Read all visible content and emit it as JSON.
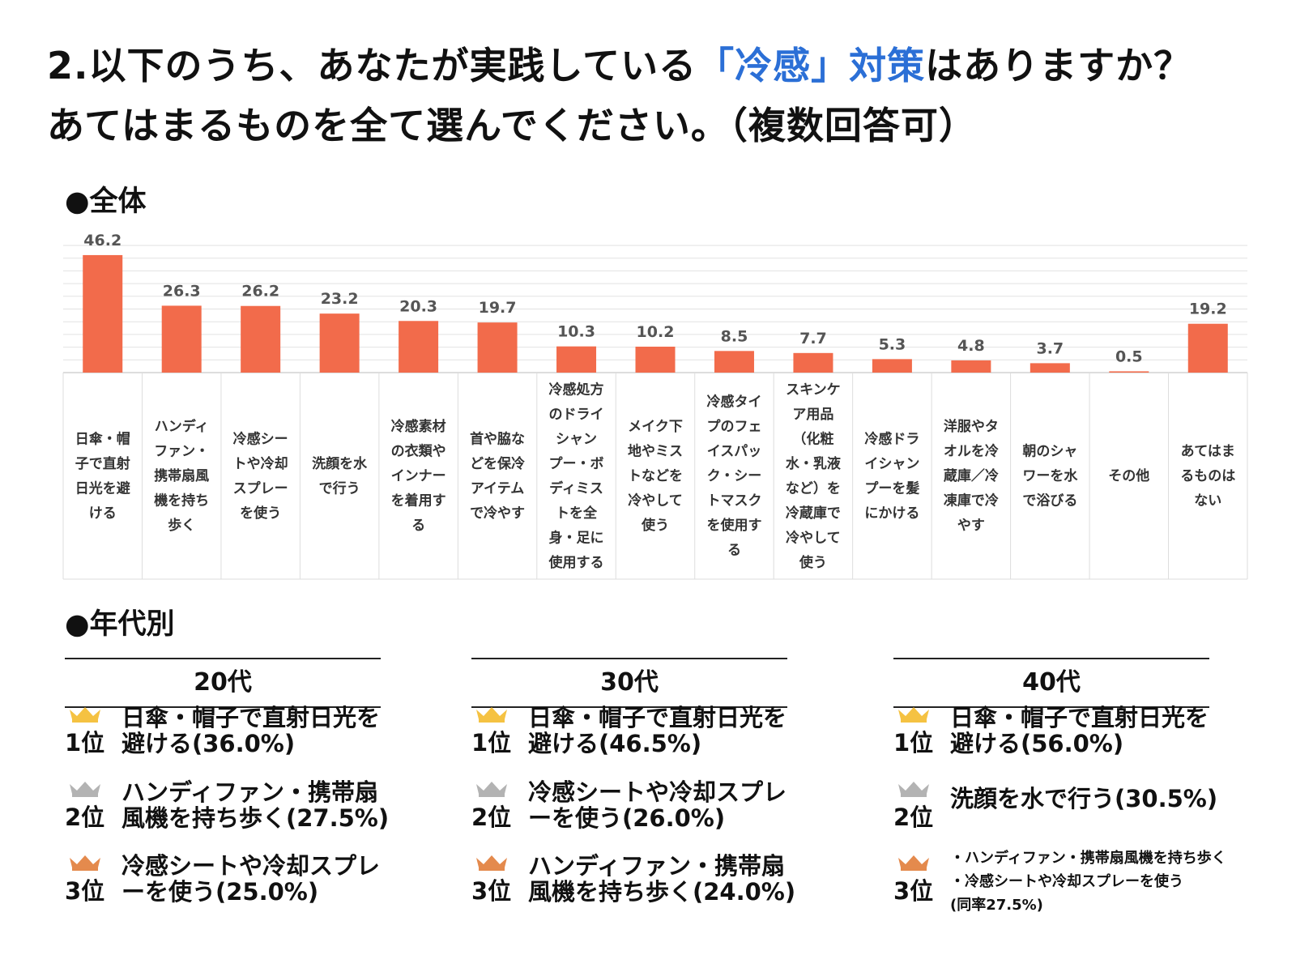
{
  "title": {
    "line1_pre": "2.以下のうち、あなたが実践している",
    "line1_highlight": "「冷感」対策",
    "line1_post": "はありますか？",
    "line2": "あてはまるものを全て選んでください。（複数回答可）"
  },
  "section_all": "●全体",
  "section_age": "●年代別",
  "colors": {
    "bar": "#f26b4b",
    "highlight": "#2b6fd6",
    "gold": "#f5c242",
    "silver": "#b3b3b3",
    "bronze": "#e48a4d"
  },
  "chart_data": {
    "type": "bar",
    "title": "全体",
    "ylim": [
      0,
      50
    ],
    "grid": true,
    "categories": [
      "日傘・帽子で直射日光を避ける",
      "ハンディファン・携帯扇風機を持ち歩く",
      "冷感シートや冷却スプレーを使う",
      "洗顔を水で行う",
      "冷感素材の衣類やインナーを着用する",
      "首や脇などを保冷アイテムで冷やす",
      "冷感処方のドライシャンプー・ボディミストを全身・足に使用する",
      "メイク下地やミストなどを冷やして使う",
      "冷感タイプのフェイスパック・シートマスクを使用する",
      "スキンケア用品（化粧水・乳液など）を冷蔵庫で冷やして使う",
      "冷感ドライシャンプーを髪にかける",
      "洋服やタオルを冷蔵庫／冷凍庫で冷やす",
      "朝のシャワーを水で浴びる",
      "その他",
      "あてはまるものはない"
    ],
    "category_lines": [
      [
        "日傘・帽",
        "子で直射",
        "日光を避",
        "ける"
      ],
      [
        "ハンディ",
        "ファン・",
        "携帯扇風",
        "機を持ち",
        "歩く"
      ],
      [
        "冷感シー",
        "トや冷却",
        "スプレー",
        "を使う"
      ],
      [
        "洗顔を水",
        "で行う"
      ],
      [
        "冷感素材",
        "の衣類や",
        "インナー",
        "を着用す",
        "る"
      ],
      [
        "首や脇な",
        "どを保冷",
        "アイテム",
        "で冷やす"
      ],
      [
        "冷感処方",
        "のドライ",
        "シャン",
        "プー・ボ",
        "ディミス",
        "トを全",
        "身・足に",
        "使用する"
      ],
      [
        "メイク下",
        "地やミス",
        "トなどを",
        "冷やして",
        "使う"
      ],
      [
        "冷感タイ",
        "プのフェ",
        "イスパッ",
        "ク・シー",
        "トマスク",
        "を使用す",
        "る"
      ],
      [
        "スキンケ",
        "ア用品",
        "（化粧",
        "水・乳液",
        "など）を",
        "冷蔵庫で",
        "冷やして",
        "使う"
      ],
      [
        "冷感ドラ",
        "イシャン",
        "プーを髪",
        "にかける"
      ],
      [
        "洋服やタ",
        "オルを冷",
        "蔵庫／冷",
        "凍庫で冷",
        "やす"
      ],
      [
        "朝のシャ",
        "ワーを水",
        "で浴びる"
      ],
      [
        "その他"
      ],
      [
        "あてはま",
        "るものは",
        "ない"
      ]
    ],
    "values": [
      46.2,
      26.3,
      26.2,
      23.2,
      20.3,
      19.7,
      10.3,
      10.2,
      8.5,
      7.7,
      5.3,
      4.8,
      3.7,
      0.5,
      19.2
    ],
    "value_labels": [
      "46.2",
      "26.3",
      "26.2",
      "23.2",
      "20.3",
      "19.7",
      "10.3",
      "10.2",
      "8.5",
      "7.7",
      "5.3",
      "4.8",
      "3.7",
      "0.5",
      "19.2"
    ]
  },
  "age_groups": [
    {
      "label": "20代",
      "ranks": [
        {
          "rank": "1位",
          "lines": [
            "日傘・帽子で直射日光を",
            "避ける(36.0%)"
          ]
        },
        {
          "rank": "2位",
          "lines": [
            "ハンディファン・携帯扇",
            "風機を持ち歩く(27.5%)"
          ]
        },
        {
          "rank": "3位",
          "lines": [
            "冷感シートや冷却スプレ",
            "ーを使う(25.0%)"
          ]
        }
      ]
    },
    {
      "label": "30代",
      "ranks": [
        {
          "rank": "1位",
          "lines": [
            "日傘・帽子で直射日光を",
            "避ける(46.5%)"
          ]
        },
        {
          "rank": "2位",
          "lines": [
            "冷感シートや冷却スプレ",
            "ーを使う(26.0%)"
          ]
        },
        {
          "rank": "3位",
          "lines": [
            "ハンディファン・携帯扇",
            "風機を持ち歩く(24.0%)"
          ]
        }
      ]
    },
    {
      "label": "40代",
      "ranks": [
        {
          "rank": "1位",
          "lines": [
            "日傘・帽子で直射日光を",
            "避ける(56.0%)"
          ]
        },
        {
          "rank": "2位",
          "lines": [
            "洗顔を水で行う(30.5%)"
          ]
        },
        {
          "rank": "3位",
          "small": true,
          "lines": [
            "・ハンディファン・携帯扇風機を持ち歩く",
            "・冷感シートや冷却スプレーを使う",
            "(同率27.5%)"
          ]
        }
      ]
    }
  ]
}
